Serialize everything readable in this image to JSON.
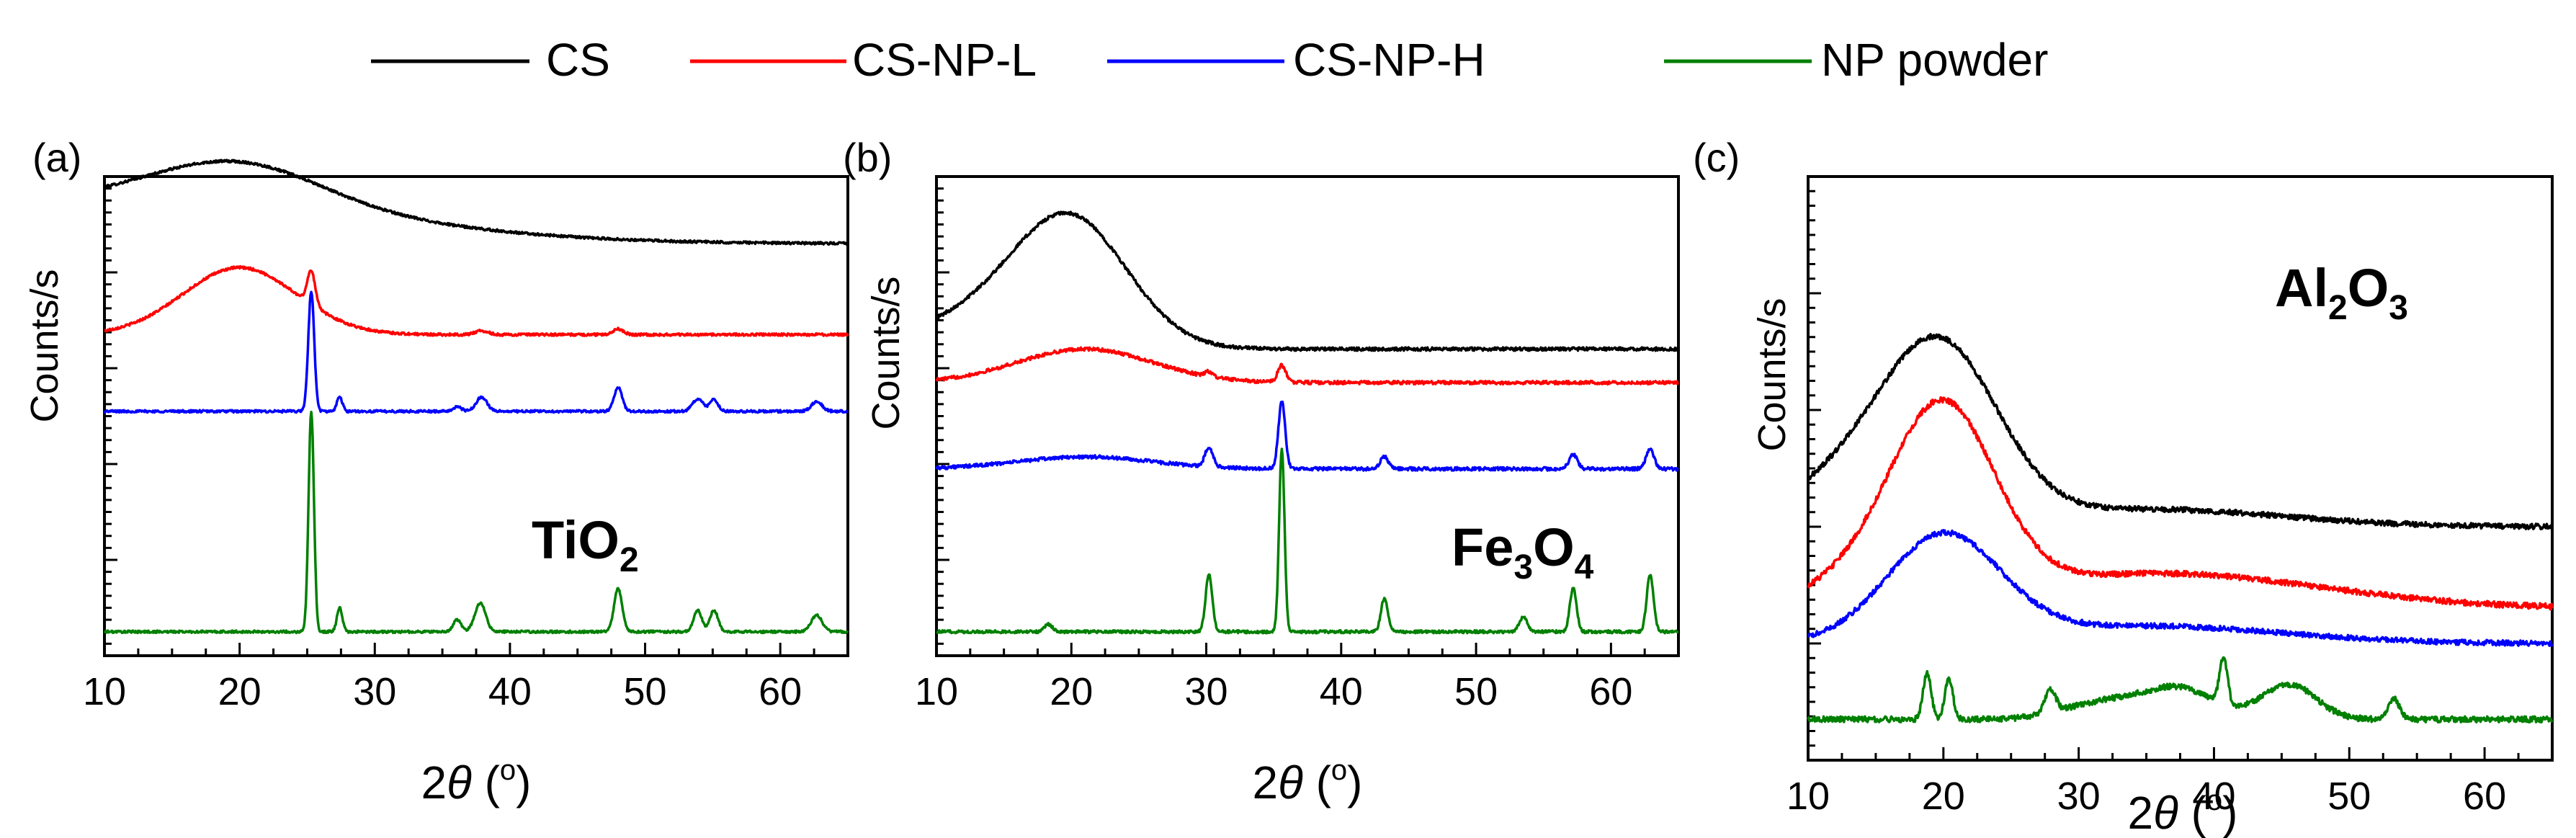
{
  "legend": {
    "placement": "top",
    "entries": [
      {
        "label": "CS",
        "color": "#000000"
      },
      {
        "label": "CS-NP-L",
        "color": "#ff0000"
      },
      {
        "label": "CS-NP-H",
        "color": "#0000ff"
      },
      {
        "label": "NP powder",
        "color": "#008000"
      }
    ]
  },
  "chart_data": [
    {
      "type": "line",
      "panel_label": "(a)",
      "annotation": {
        "base": "TiO",
        "sub": "2"
      },
      "xlabel": {
        "prefix": "2",
        "symbol": "θ",
        "unit": " (",
        "sup": "o",
        "close": ")"
      },
      "ylabel": "Counts/s",
      "x_ticks": [
        10,
        20,
        30,
        40,
        50,
        60
      ],
      "xlim": [
        10,
        65
      ],
      "ylim": [
        0,
        100
      ],
      "y_scale": "arbitrary units",
      "series": [
        {
          "name": "CS",
          "baseline": 86,
          "broad": [
            [
              13,
              16,
              10
            ],
            [
              20,
              6,
              8
            ]
          ],
          "peaks": [],
          "noise": 0.5
        },
        {
          "name": "CS-NP-L",
          "baseline": 67,
          "broad": [
            [
              20,
              4.2,
              14
            ]
          ],
          "peaks": [
            [
              25.3,
              0.3,
              7
            ],
            [
              48.0,
              0.4,
              1.2
            ],
            [
              37.9,
              0.5,
              0.8
            ]
          ],
          "noise": 0.5
        },
        {
          "name": "CS-NP-H",
          "baseline": 51,
          "broad": [],
          "peaks": [
            [
              25.3,
              0.22,
              25
            ],
            [
              27.4,
              0.2,
              3
            ],
            [
              36.1,
              0.3,
              1
            ],
            [
              37.9,
              0.4,
              3
            ],
            [
              48.0,
              0.3,
              5
            ],
            [
              53.9,
              0.4,
              2.5
            ],
            [
              55.1,
              0.3,
              2.5
            ],
            [
              62.7,
              0.4,
              2
            ]
          ],
          "noise": 0.5
        },
        {
          "name": "NP powder",
          "baseline": 5,
          "broad": [],
          "peaks": [
            [
              25.3,
              0.2,
              46
            ],
            [
              27.4,
              0.2,
              5
            ],
            [
              36.1,
              0.3,
              2.5
            ],
            [
              37.8,
              0.4,
              6
            ],
            [
              48.0,
              0.3,
              9
            ],
            [
              53.9,
              0.3,
              4.5
            ],
            [
              55.1,
              0.3,
              4.5
            ],
            [
              62.7,
              0.4,
              3.5
            ]
          ],
          "noise": 0.5
        }
      ]
    },
    {
      "type": "line",
      "panel_label": "(b)",
      "annotation": {
        "base": "Fe",
        "sub": "3",
        "mid": "O",
        "sub2": "4"
      },
      "xlabel": {
        "prefix": "2",
        "symbol": "θ",
        "unit": " (",
        "sup": "o",
        "close": ")"
      },
      "ylabel": "Counts/s",
      "x_ticks": [
        10,
        20,
        30,
        40,
        50,
        60
      ],
      "xlim": [
        10,
        65
      ],
      "ylim": [
        0,
        100
      ],
      "y_scale": "arbitrary units",
      "series": [
        {
          "name": "CS",
          "baseline": 64,
          "broad": [
            [
              20,
              4.2,
              26
            ],
            [
              13,
              5,
              6
            ]
          ],
          "peaks": [],
          "noise": 0.7
        },
        {
          "name": "CS-NP-L",
          "baseline": 57,
          "broad": [
            [
              21,
              5,
              7
            ]
          ],
          "peaks": [
            [
              35.6,
              0.3,
              3.5
            ],
            [
              30.2,
              0.3,
              1
            ]
          ],
          "noise": 0.7
        },
        {
          "name": "CS-NP-H",
          "baseline": 39,
          "broad": [
            [
              21,
              5,
              2.5
            ]
          ],
          "peaks": [
            [
              30.2,
              0.3,
              4
            ],
            [
              35.6,
              0.25,
              14
            ],
            [
              43.2,
              0.3,
              2.5
            ],
            [
              57.2,
              0.3,
              3
            ],
            [
              62.9,
              0.3,
              4
            ]
          ],
          "noise": 0.7
        },
        {
          "name": "NP powder",
          "baseline": 5,
          "broad": [],
          "peaks": [
            [
              18.3,
              0.3,
              1.5
            ],
            [
              30.2,
              0.25,
              12
            ],
            [
              35.6,
              0.2,
              38
            ],
            [
              43.2,
              0.25,
              7
            ],
            [
              53.5,
              0.3,
              3
            ],
            [
              57.2,
              0.25,
              9
            ],
            [
              62.9,
              0.25,
              12
            ]
          ],
          "noise": 0.6
        }
      ]
    },
    {
      "type": "line",
      "panel_label": "(c)",
      "annotation": {
        "base": "Al",
        "sub": "2",
        "mid": "O",
        "sub2": "3"
      },
      "xlabel": {
        "prefix": "2",
        "symbol": "θ",
        "unit": " (",
        "sup": "o",
        "close": ")"
      },
      "ylabel": "Counts/s",
      "x_ticks": [
        10,
        20,
        30,
        40,
        50,
        60
      ],
      "xlim": [
        10,
        65
      ],
      "ylim": [
        0,
        100
      ],
      "y_scale": "arbitrary units",
      "series": [
        {
          "name": "CS",
          "baseline": 40,
          "broad": [
            [
              20,
              4.2,
              27
            ],
            [
              14,
              5,
              9
            ],
            [
              35,
              10,
              3
            ]
          ],
          "peaks": [],
          "noise": 0.9
        },
        {
          "name": "CS-NP-L",
          "baseline": 26,
          "broad": [
            [
              20,
              3.8,
              32
            ],
            [
              14,
              4,
              4
            ],
            [
              36,
              12,
              6
            ]
          ],
          "peaks": [],
          "noise": 1.0
        },
        {
          "name": "CS-NP-H",
          "baseline": 20,
          "broad": [
            [
              20,
              4.2,
              18
            ],
            [
              35,
              10,
              3
            ]
          ],
          "peaks": [],
          "noise": 0.9
        },
        {
          "name": "NP powder",
          "baseline": 7,
          "broad": [
            [
              32,
              3,
              3
            ],
            [
              37.5,
              2.5,
              5
            ],
            [
              45.5,
              2,
              6
            ]
          ],
          "peaks": [
            [
              18.8,
              0.3,
              8
            ],
            [
              20.4,
              0.3,
              7
            ],
            [
              27.9,
              0.4,
              4
            ],
            [
              40.7,
              0.3,
              8
            ],
            [
              53.3,
              0.4,
              3.5
            ]
          ],
          "noise": 1.0
        }
      ]
    }
  ]
}
